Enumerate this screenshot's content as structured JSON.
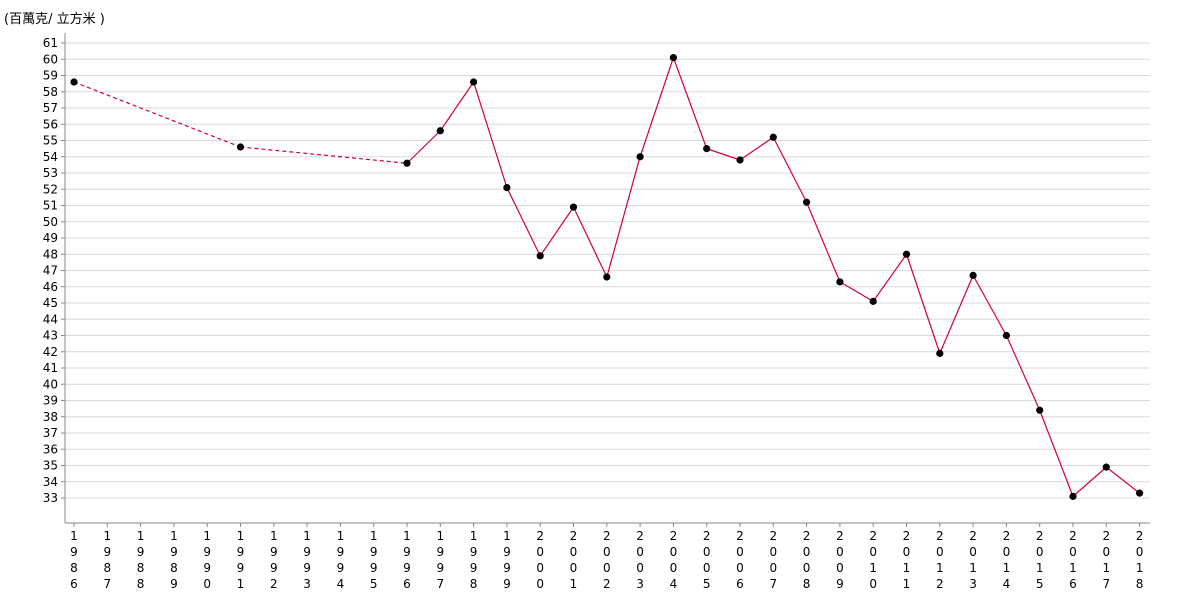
{
  "chart_data": {
    "type": "line",
    "ylabel": "(百萬克/ 立方米 )",
    "ylim": [
      32,
      61
    ],
    "yticks": [
      33,
      34,
      35,
      36,
      37,
      38,
      39,
      40,
      41,
      42,
      43,
      44,
      45,
      46,
      47,
      48,
      49,
      50,
      51,
      52,
      53,
      54,
      55,
      56,
      57,
      58,
      59,
      60,
      61
    ],
    "categories": [
      "1986",
      "1987",
      "1988",
      "1989",
      "1990",
      "1991",
      "1992",
      "1993",
      "1994",
      "1995",
      "1996",
      "1997",
      "1998",
      "1999",
      "2000",
      "2001",
      "2002",
      "2003",
      "2004",
      "2005",
      "2006",
      "2007",
      "2008",
      "2009",
      "2010",
      "2011",
      "2012",
      "2013",
      "2014",
      "2015",
      "2016",
      "2017",
      "2018"
    ],
    "series": [
      {
        "values": [
          58.6,
          null,
          null,
          null,
          null,
          54.6,
          null,
          null,
          null,
          null,
          53.6,
          55.6,
          58.6,
          52.1,
          47.9,
          50.9,
          46.6,
          54.0,
          60.1,
          54.5,
          53.8,
          55.2,
          51.2,
          46.3,
          45.1,
          48.0,
          41.9,
          46.7,
          43.0,
          38.4,
          33.1,
          34.9,
          33.3
        ]
      }
    ],
    "grid": true,
    "line_color": "#d4003a",
    "point_color": "#000000"
  }
}
